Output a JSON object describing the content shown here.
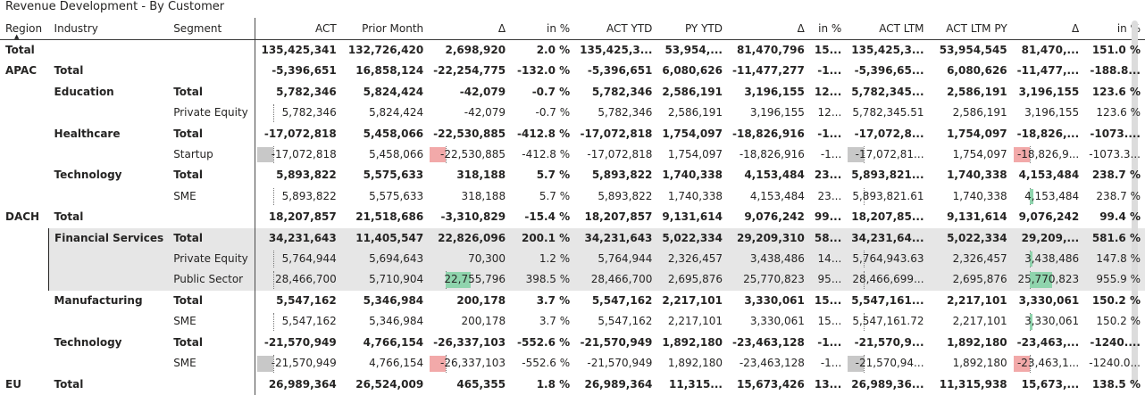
{
  "title": "Revenue Development - By Customer",
  "colors": {
    "highlight_row": "#e6e6e6",
    "bar_negative": "#c8c8c8",
    "bar_red": "#f2a9a9",
    "bar_green": "#8fd4ad",
    "text": "#252423"
  },
  "headers": [
    "Region",
    "Industry",
    "Segment",
    "ACT",
    "Prior Month",
    "Δ",
    "in %",
    "ACT YTD",
    "PY YTD",
    "Δ",
    "in %",
    "ACT LTM",
    "ACT LTM PY",
    "Δ",
    "in %"
  ],
  "rows": [
    {
      "type": "grand",
      "region": "Total",
      "industry": "",
      "segment": "",
      "v": [
        "135,425,341",
        "132,726,420",
        "2,698,920",
        "2.0 %",
        "135,425,3...",
        "53,954,...",
        "81,470,796",
        "15...",
        "135,425,3...",
        "53,954,545",
        "81,470,...",
        "151.0 %"
      ]
    },
    {
      "type": "bold",
      "region": "APAC",
      "industry": "Total",
      "segment": "",
      "v": [
        "-5,396,651",
        "16,858,124",
        "-22,254,775",
        "-132.0 %",
        "-5,396,651",
        "6,080,626",
        "-11,477,277",
        "-1...",
        "-5,396,65...",
        "6,080,626",
        "-11,477,...",
        "-188.8..."
      ]
    },
    {
      "type": "bold",
      "region": "",
      "industry": "Education",
      "segment": "Total",
      "v": [
        "5,782,346",
        "5,824,424",
        "-42,079",
        "-0.7 %",
        "5,782,346",
        "2,586,191",
        "3,196,155",
        "12...",
        "5,782,345...",
        "2,586,191",
        "3,196,155",
        "123.6 %"
      ]
    },
    {
      "type": "leaf",
      "region": "",
      "industry": "",
      "segment": "Private Equity",
      "v": [
        "5,782,346",
        "5,824,424",
        "-42,079",
        "-0.7 %",
        "5,782,346",
        "2,586,191",
        "3,196,155",
        "12...",
        "5,782,345.51",
        "2,586,191",
        "3,196,155",
        "123.6 %"
      ]
    },
    {
      "type": "bold",
      "region": "",
      "industry": "Healthcare",
      "segment": "Total",
      "v": [
        "-17,072,818",
        "5,458,066",
        "-22,530,885",
        "-412.8 %",
        "-17,072,818",
        "1,754,097",
        "-18,826,916",
        "-1...",
        "-17,072,8...",
        "1,754,097",
        "-18,826,...",
        "-1073...."
      ]
    },
    {
      "type": "leaf",
      "region": "",
      "industry": "",
      "segment": "Startup",
      "v": [
        "-17,072,818",
        "5,458,066",
        "-22,530,885",
        "-412.8 %",
        "-17,072,818",
        "1,754,097",
        "-18,826,916",
        "-1...",
        "-17,072,81...",
        "1,754,097",
        "-18,826,9...",
        "-1073.3..."
      ]
    },
    {
      "type": "bold",
      "region": "",
      "industry": "Technology",
      "segment": "Total",
      "v": [
        "5,893,822",
        "5,575,633",
        "318,188",
        "5.7 %",
        "5,893,822",
        "1,740,338",
        "4,153,484",
        "23...",
        "5,893,821...",
        "1,740,338",
        "4,153,484",
        "238.7 %"
      ]
    },
    {
      "type": "leaf",
      "region": "",
      "industry": "",
      "segment": "SME",
      "v": [
        "5,893,822",
        "5,575,633",
        "318,188",
        "5.7 %",
        "5,893,822",
        "1,740,338",
        "4,153,484",
        "23...",
        "5,893,821.61",
        "1,740,338",
        "4,153,484",
        "238.7 %"
      ]
    },
    {
      "type": "bold",
      "region": "DACH",
      "industry": "Total",
      "segment": "",
      "v": [
        "18,207,857",
        "21,518,686",
        "-3,310,829",
        "-15.4 %",
        "18,207,857",
        "9,131,614",
        "9,076,242",
        "99...",
        "18,207,85...",
        "9,131,614",
        "9,076,242",
        "99.4 %"
      ]
    },
    {
      "type": "bold",
      "hl": true,
      "region": "",
      "industry": "Financial Services",
      "segment": "Total",
      "v": [
        "34,231,643",
        "11,405,547",
        "22,826,096",
        "200.1 %",
        "34,231,643",
        "5,022,334",
        "29,209,310",
        "58...",
        "34,231,64...",
        "5,022,334",
        "29,209,...",
        "581.6 %"
      ]
    },
    {
      "type": "leaf",
      "hl": true,
      "region": "",
      "industry": "",
      "segment": "Private Equity",
      "v": [
        "5,764,944",
        "5,694,643",
        "70,300",
        "1.2 %",
        "5,764,944",
        "2,326,457",
        "3,438,486",
        "14...",
        "5,764,943.63",
        "2,326,457",
        "3,438,486",
        "147.8 %"
      ]
    },
    {
      "type": "leaf",
      "hl": true,
      "region": "",
      "industry": "",
      "segment": "Public Sector",
      "v": [
        "28,466,700",
        "5,710,904",
        "22,755,796",
        "398.5 %",
        "28,466,700",
        "2,695,876",
        "25,770,823",
        "95...",
        "28,466,699...",
        "2,695,876",
        "25,770,823",
        "955.9 %"
      ]
    },
    {
      "type": "bold",
      "region": "",
      "industry": "Manufacturing",
      "segment": "Total",
      "v": [
        "5,547,162",
        "5,346,984",
        "200,178",
        "3.7 %",
        "5,547,162",
        "2,217,101",
        "3,330,061",
        "15...",
        "5,547,161...",
        "2,217,101",
        "3,330,061",
        "150.2 %"
      ]
    },
    {
      "type": "leaf",
      "region": "",
      "industry": "",
      "segment": "SME",
      "v": [
        "5,547,162",
        "5,346,984",
        "200,178",
        "3.7 %",
        "5,547,162",
        "2,217,101",
        "3,330,061",
        "15...",
        "5,547,161.72",
        "2,217,101",
        "3,330,061",
        "150.2 %"
      ]
    },
    {
      "type": "bold",
      "region": "",
      "industry": "Technology",
      "segment": "Total",
      "v": [
        "-21,570,949",
        "4,766,154",
        "-26,337,103",
        "-552.6 %",
        "-21,570,949",
        "1,892,180",
        "-23,463,128",
        "-1...",
        "-21,570,9...",
        "1,892,180",
        "-23,463,...",
        "-1240...."
      ]
    },
    {
      "type": "leaf",
      "region": "",
      "industry": "",
      "segment": "SME",
      "v": [
        "-21,570,949",
        "4,766,154",
        "-26,337,103",
        "-552.6 %",
        "-21,570,949",
        "1,892,180",
        "-23,463,128",
        "-1...",
        "-21,570,94...",
        "1,892,180",
        "-23,463,1...",
        "-1240.0..."
      ]
    },
    {
      "type": "bold",
      "region": "EU",
      "industry": "Total",
      "segment": "",
      "v": [
        "26,989,364",
        "26,524,009",
        "465,355",
        "1.8 %",
        "26,989,364",
        "11,315...",
        "15,673,426",
        "13...",
        "26,989,36...",
        "11,315,938",
        "15,673,...",
        "138.5 %"
      ]
    }
  ],
  "bars": [
    {
      "row": 3,
      "col": 0,
      "value": 5782346
    },
    {
      "row": 5,
      "col": 0,
      "value": -17072818
    },
    {
      "row": 5,
      "col": 2,
      "value": -22530885
    },
    {
      "row": 5,
      "col": 8,
      "value": -17072818
    },
    {
      "row": 5,
      "col": 10,
      "value": -18826916
    },
    {
      "row": 7,
      "col": 0,
      "value": 5893822
    },
    {
      "row": 7,
      "col": 8,
      "value": 5893822
    },
    {
      "row": 7,
      "col": 10,
      "value": 4153484
    },
    {
      "row": 10,
      "col": 0,
      "value": 5764944
    },
    {
      "row": 10,
      "col": 8,
      "value": 5764944
    },
    {
      "row": 10,
      "col": 10,
      "value": 3438486
    },
    {
      "row": 11,
      "col": 0,
      "value": 28466700
    },
    {
      "row": 11,
      "col": 2,
      "value": 22755796
    },
    {
      "row": 11,
      "col": 8,
      "value": 28466700
    },
    {
      "row": 11,
      "col": 10,
      "value": 25770823
    },
    {
      "row": 13,
      "col": 0,
      "value": 5547162
    },
    {
      "row": 13,
      "col": 8,
      "value": 5547162
    },
    {
      "row": 13,
      "col": 10,
      "value": 3330061
    },
    {
      "row": 15,
      "col": 0,
      "value": -21570949
    },
    {
      "row": 15,
      "col": 2,
      "value": -26337103
    },
    {
      "row": 15,
      "col": 8,
      "value": -21570949
    },
    {
      "row": 15,
      "col": 10,
      "value": -23463128
    }
  ]
}
